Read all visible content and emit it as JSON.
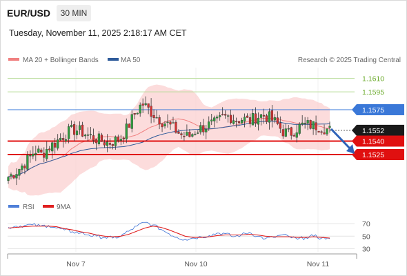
{
  "header": {
    "symbol": "EUR/USD",
    "timeframe": "30 MIN",
    "datetime": "Tuesday, November 11, 2025 2:18:17 AM CET"
  },
  "legend": {
    "ma20_label": "MA 20 + Bollinger Bands",
    "ma50_label": "MA 50",
    "copyright": "Research © 2025 Trading Central",
    "ma20_color": "#f08080",
    "ma50_color": "#2e5b9a"
  },
  "rsi_legend": {
    "rsi_label": "RSI",
    "ma9_label": "9MA",
    "rsi_color": "#4f7fd8",
    "ma9_color": "#e02020"
  },
  "chart_data": [
    {
      "type": "candlestick",
      "title": "EUR/USD",
      "ylim": [
        1.1478,
        1.1622
      ],
      "x_ticks": [
        "Nov 7",
        "Nov 10",
        "Nov 11"
      ],
      "levels": [
        {
          "value": 1.161,
          "label": "1.1610",
          "kind": "resistance-light",
          "color": "#6aaa2a"
        },
        {
          "value": 1.1595,
          "label": "1.1595",
          "kind": "resistance-light",
          "color": "#6aaa2a"
        },
        {
          "value": 1.1575,
          "label": "1.1575",
          "kind": "pivot",
          "color": "#3a78d8"
        },
        {
          "value": 1.1552,
          "label": "1.1552",
          "kind": "last-price",
          "color": "#1a1a1a"
        },
        {
          "value": 1.154,
          "label": "1.1540",
          "kind": "target",
          "color": "#e01010"
        },
        {
          "value": 1.1525,
          "label": "1.1525",
          "kind": "target",
          "color": "#e01010"
        }
      ],
      "arrow_direction": "down",
      "close_path": [
        1.15,
        1.1505,
        1.1512,
        1.152,
        1.153,
        1.1525,
        1.1533,
        1.1538,
        1.1545,
        1.155,
        1.1553,
        1.155,
        1.1546,
        1.1543,
        1.154,
        1.1538,
        1.1541,
        1.1545,
        1.1558,
        1.1572,
        1.1582,
        1.1575,
        1.1568,
        1.1562,
        1.1558,
        1.1552,
        1.1546,
        1.1545,
        1.1552,
        1.1555,
        1.1558,
        1.156,
        1.1566,
        1.1568,
        1.1564,
        1.1565,
        1.1562,
        1.1567,
        1.1569,
        1.1566,
        1.156,
        1.1551,
        1.1548,
        1.1554,
        1.1558,
        1.1558,
        1.1557,
        1.1555,
        1.1552
      ]
    },
    {
      "type": "line",
      "title": "RSI",
      "ylim": [
        25,
        80
      ],
      "y_ticks": [
        70,
        50,
        30
      ],
      "series": [
        {
          "name": "RSI",
          "values": [
            64,
            66,
            67,
            68,
            66,
            67,
            63,
            60,
            57,
            55,
            52,
            50,
            48,
            47,
            50,
            58,
            66,
            72,
            68,
            61,
            54,
            48,
            45,
            47,
            49,
            51,
            55,
            54,
            49,
            52,
            56,
            50,
            46,
            48,
            52,
            49,
            45,
            48,
            50,
            47,
            46
          ]
        },
        {
          "name": "9MA",
          "values": [
            63,
            64,
            65,
            66,
            66,
            66,
            65,
            62,
            60,
            57,
            55,
            52,
            50,
            49,
            50,
            53,
            58,
            63,
            66,
            64,
            60,
            55,
            50,
            48,
            48,
            49,
            51,
            52,
            52,
            52,
            53,
            52,
            50,
            49,
            49,
            49,
            48,
            48,
            49,
            48,
            47
          ]
        }
      ]
    }
  ]
}
